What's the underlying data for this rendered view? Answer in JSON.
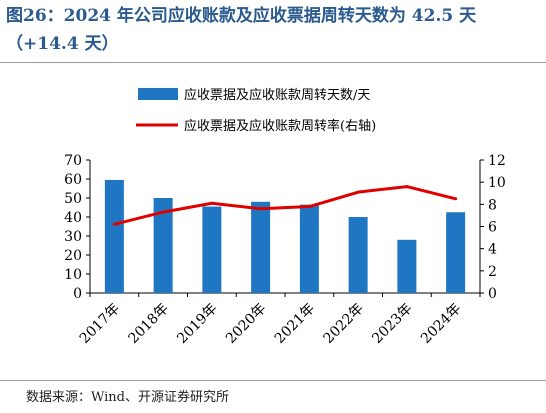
{
  "title": "图26：2024 年公司应收账款及应收票据周转天数为 42.5 天（+14.4 天）",
  "source": "数据来源：Wind、开源证券研究所",
  "chart_data": {
    "type": "bar",
    "categories": [
      "2017年",
      "2018年",
      "2019年",
      "2020年",
      "2021年",
      "2022年",
      "2023年",
      "2024年"
    ],
    "series": [
      {
        "name": "应收票据及应收账款周转天数/天",
        "type": "bar",
        "axis": "left",
        "color": "#1f77c4",
        "values": [
          59.5,
          50,
          45.5,
          48,
          46.5,
          40,
          28,
          42.5
        ]
      },
      {
        "name": "应收票据及应收账款周转率(右轴)",
        "type": "line",
        "axis": "right",
        "color": "#e00000",
        "values": [
          6.2,
          7.3,
          8.1,
          7.6,
          7.8,
          9.1,
          9.6,
          8.5
        ]
      }
    ],
    "y_left": {
      "lim": [
        0,
        70
      ],
      "ticks": [
        "0",
        "10",
        "20",
        "30",
        "40",
        "50",
        "60",
        "70"
      ]
    },
    "y_right": {
      "lim": [
        0,
        12
      ],
      "ticks": [
        "0",
        "2",
        "4",
        "6",
        "8",
        "10",
        "12"
      ]
    },
    "legend_position": "top",
    "grid": false
  }
}
